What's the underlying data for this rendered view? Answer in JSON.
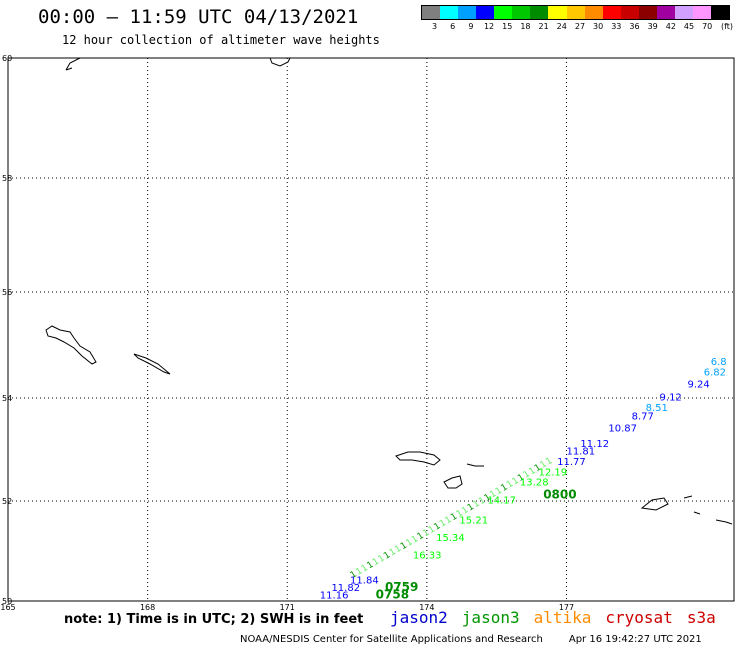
{
  "header": {
    "title": "00:00 – 11:59 UTC 04/13/2021",
    "subtitle": "12 hour collection of altimeter wave heights"
  },
  "color_scale": {
    "unit": "(ft)",
    "bins": [
      {
        "label": "3",
        "color": "#7f7f7f"
      },
      {
        "label": "6",
        "color": "#00ffff"
      },
      {
        "label": "9",
        "color": "#00a0ff"
      },
      {
        "label": "12",
        "color": "#0000ff"
      },
      {
        "label": "15",
        "color": "#00ff00"
      },
      {
        "label": "18",
        "color": "#00c800"
      },
      {
        "label": "21",
        "color": "#008c00"
      },
      {
        "label": "24",
        "color": "#ffff00"
      },
      {
        "label": "27",
        "color": "#ffc800"
      },
      {
        "label": "30",
        "color": "#ff8c00"
      },
      {
        "label": "33",
        "color": "#ff0000"
      },
      {
        "label": "36",
        "color": "#c80000"
      },
      {
        "label": "39",
        "color": "#8c0000"
      },
      {
        "label": "42",
        "color": "#a000a0"
      },
      {
        "label": "45",
        "color": "#d2a0ff"
      },
      {
        "label": "70",
        "color": "#ff96ff"
      },
      {
        "label": "",
        "color": "#000000"
      }
    ]
  },
  "map": {
    "lon_ticks": [
      "165",
      "168",
      "171",
      "174",
      "177"
    ],
    "lat_ticks": [
      "60",
      "58",
      "56",
      "54",
      "52",
      "50"
    ],
    "track_labels": [
      {
        "text": "6.82",
        "lon": 179.95,
        "lat": 54.42,
        "color": "#00a0ff"
      },
      {
        "text": "6.8",
        "lon": 180.1,
        "lat": 54.62,
        "color": "#00a0ff"
      },
      {
        "text": "8.51",
        "lon": 178.7,
        "lat": 53.75,
        "color": "#00a0ff"
      },
      {
        "text": "9.24",
        "lon": 179.6,
        "lat": 54.2,
        "color": "#0000ff"
      },
      {
        "text": "9.12",
        "lon": 179.0,
        "lat": 53.95,
        "color": "#0000ff"
      },
      {
        "text": "8.77",
        "lon": 178.4,
        "lat": 53.58,
        "color": "#0000ff"
      },
      {
        "text": "10.87",
        "lon": 177.9,
        "lat": 53.35,
        "color": "#0000ff"
      },
      {
        "text": "11.12",
        "lon": 177.3,
        "lat": 53.05,
        "color": "#0000ff"
      },
      {
        "text": "11.81",
        "lon": 177.0,
        "lat": 52.9,
        "color": "#0000ff"
      },
      {
        "text": "11.77",
        "lon": 176.8,
        "lat": 52.7,
        "color": "#0000ff"
      },
      {
        "text": "12.19",
        "lon": 176.4,
        "lat": 52.5,
        "color": "#00ff00"
      },
      {
        "text": "13.28",
        "lon": 176.0,
        "lat": 52.3,
        "color": "#00ff00"
      },
      {
        "text": "0800",
        "lon": 176.5,
        "lat": 52.05,
        "color": "#008c00"
      },
      {
        "text": "14.17",
        "lon": 175.3,
        "lat": 51.95,
        "color": "#00ff00"
      },
      {
        "text": "15.21",
        "lon": 174.7,
        "lat": 51.55,
        "color": "#00ff00"
      },
      {
        "text": "15.34",
        "lon": 174.2,
        "lat": 51.2,
        "color": "#00ff00"
      },
      {
        "text": "16.33",
        "lon": 173.7,
        "lat": 50.85,
        "color": "#00ff00"
      },
      {
        "text": "11.84",
        "lon": 172.35,
        "lat": 50.35,
        "color": "#0000ff"
      },
      {
        "text": "11.82",
        "lon": 171.95,
        "lat": 50.2,
        "color": "#0000ff"
      },
      {
        "text": "11.16",
        "lon": 171.7,
        "lat": 50.05,
        "color": "#0000ff"
      },
      {
        "text": "0759",
        "lon": 173.1,
        "lat": 50.2,
        "color": "#008c00"
      },
      {
        "text": "0758",
        "lon": 172.9,
        "lat": 50.05,
        "color": "#008c00"
      }
    ]
  },
  "note": "note: 1) Time is in UTC; 2) SWH is in feet",
  "satellites": [
    {
      "name": "jason2",
      "color": "#0000cc"
    },
    {
      "name": "jason3",
      "color": "#009600"
    },
    {
      "name": "altika",
      "color": "#ff8c00"
    },
    {
      "name": "cryosat",
      "color": "#cc0000"
    },
    {
      "name": "s3a",
      "color": "#cc0000"
    }
  ],
  "footer": {
    "credit": "NOAA/NESDIS Center for Satellite Applications and Research",
    "timestamp": "Apr 16 19:42:27 UTC 2021"
  }
}
